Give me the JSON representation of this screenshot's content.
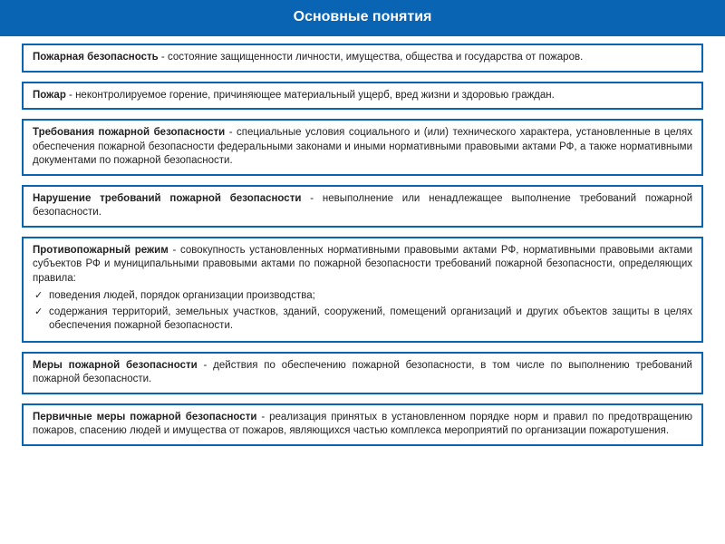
{
  "colors": {
    "header_bg": "#0a64b4",
    "header_text": "#ffffff",
    "box_border": "#0a64b4",
    "box_bg": "#ffffff",
    "text": "#222222"
  },
  "header": {
    "title": "Основные понятия",
    "fontsize": 16
  },
  "definitions": [
    {
      "term": "Пожарная безопасность",
      "text": " - состояние защищенности личности, имущества, общества и государства от пожаров."
    },
    {
      "term": "Пожар",
      "text": " - неконтролируемое горение, причиняющее материальный ущерб, вред жизни и здоровью граждан."
    },
    {
      "term": "Требования пожарной безопасности",
      "text": " - специальные условия социального и (или) технического характера, установленные в целях обеспечения пожарной безопасности федеральными законами и иными нормативными правовыми актами РФ, а также нормативными документами по пожарной безопасности."
    },
    {
      "term": "Нарушение требований пожарной безопасности",
      "text": " - невыполнение или ненадлежащее выполнение требований пожарной безопасности."
    },
    {
      "term": "Противопожарный режим",
      "text": " - совокупность установленных нормативными правовыми актами РФ, нормативными правовыми актами субъектов РФ и муниципальными правовыми актами по пожарной безопасности требований пожарной безопасности, определяющих правила:",
      "bullets": [
        "поведения людей, порядок организации производства;",
        "содержания территорий, земельных участков, зданий, сооружений, помещений организаций и других объектов защиты в целях обеспечения пожарной безопасности."
      ]
    },
    {
      "term": "Меры пожарной безопасности",
      "text": " - действия по обеспечению пожарной безопасности, в том числе по выполнению требований пожарной безопасности."
    },
    {
      "term": "Первичные меры пожарной безопасности",
      "text": " - реализация принятых в установленном порядке норм и правил по предотвращению пожаров, спасению людей и имущества от пожаров, являющихся частью комплекса мероприятий по организации пожаротушения."
    }
  ]
}
